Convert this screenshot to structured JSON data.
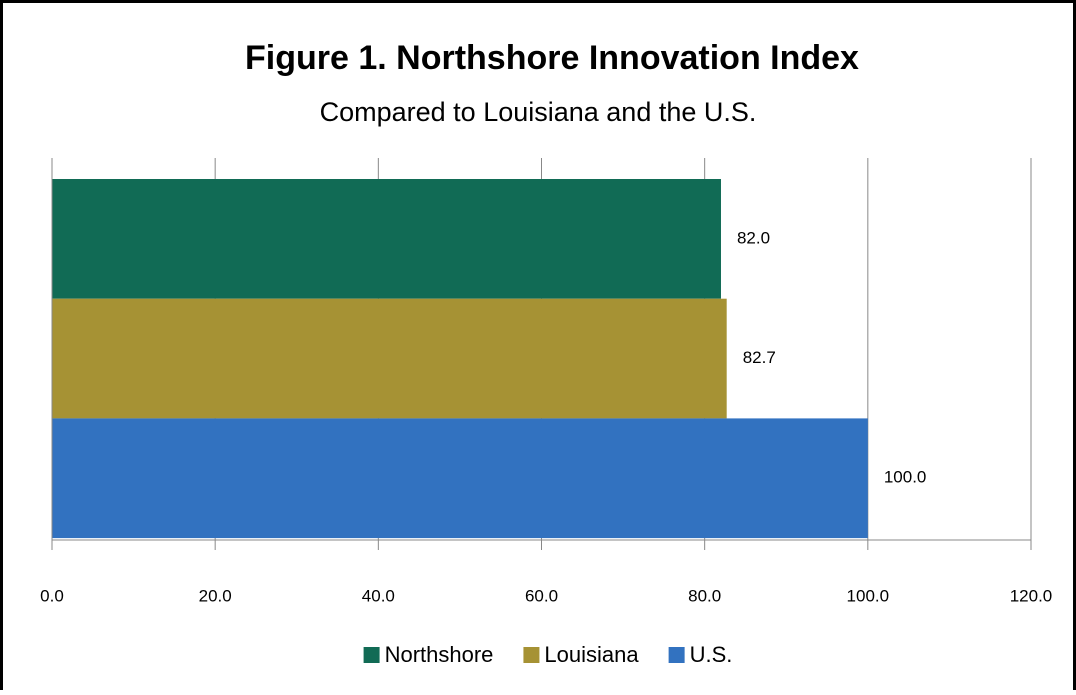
{
  "chart_data": {
    "type": "bar",
    "orientation": "horizontal",
    "title": "Figure 1.  Northshore Innovation Index",
    "subtitle": "Compared to Louisiana and the U.S.",
    "series": [
      {
        "name": "Northshore",
        "color": "#116b55",
        "values": [
          82
        ],
        "value_labels": [
          "82.0"
        ]
      },
      {
        "name": "Louisiana",
        "color": "#a69234",
        "values": [
          82.7
        ]
      },
      {
        "name": "U.S.",
        "color": "#3272c0",
        "values": [
          100
        ],
        "value_labels": [
          "100.0"
        ]
      }
    ],
    "xlim": [
      0,
      120
    ],
    "xticks": [
      {
        "value": 0,
        "label": "0.0"
      },
      {
        "value": 20,
        "label": "20.0"
      },
      {
        "value": 40,
        "label": "40.0"
      },
      {
        "value": 60,
        "label": "60.0"
      },
      {
        "value": 80,
        "label": "80.0"
      },
      {
        "value": 100,
        "label": "100.0"
      },
      {
        "value": 120,
        "label": "120.0"
      }
    ],
    "grid": true,
    "legend": "bottom"
  }
}
